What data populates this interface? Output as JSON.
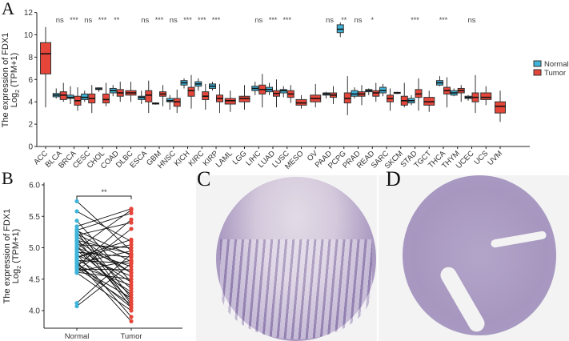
{
  "panels": {
    "a": "A",
    "b": "B",
    "c": "C",
    "d": "D"
  },
  "colors": {
    "normal": "#3fb4d8",
    "tumor": "#e6463a"
  },
  "chart_data": [
    {
      "type": "box",
      "panel": "A",
      "ylabel_line1": "The expression of FDX1",
      "ylabel_line2": "Log",
      "ylabel_sub": "2",
      "ylabel_line2b": " (TPM+1)",
      "ylim": [
        0,
        12
      ],
      "yticks": [
        0,
        2,
        4,
        6,
        8,
        10,
        12
      ],
      "legend": {
        "position": "right",
        "entries": [
          "Normal",
          "Tumor"
        ]
      },
      "categories": [
        "ACC",
        "BLCA",
        "BRCA",
        "CESC",
        "CHOL",
        "COAD",
        "DLBC",
        "ESCA",
        "GBM",
        "HNSC",
        "KICH",
        "KIRC",
        "KIRP",
        "LAML",
        "LGG",
        "LIHC",
        "LUAD",
        "LUSC",
        "MESO",
        "OV",
        "PAAD",
        "PCPG",
        "PRAD",
        "READ",
        "SARC",
        "SKCM",
        "STAD",
        "TGCT",
        "THCA",
        "THYM",
        "UCEC",
        "UCS",
        "UVM"
      ],
      "significance": [
        "",
        "ns",
        "***",
        "ns",
        "***",
        "**",
        "",
        "ns",
        "***",
        "ns",
        "***",
        "***",
        "***",
        "",
        "",
        "ns",
        "***",
        "***",
        "",
        "",
        "ns",
        "**",
        "ns",
        "*",
        "",
        "",
        "***",
        "",
        "***",
        "",
        "ns",
        "",
        ""
      ],
      "normal": [
        null,
        [
          4.3,
          4.45,
          4.6,
          4.75,
          5.2
        ],
        [
          3.8,
          4.3,
          4.4,
          4.6,
          5.4
        ],
        [
          4.0,
          4.2,
          4.4,
          4.7,
          5.0
        ],
        [
          4.9,
          5.1,
          5.15,
          5.25,
          5.3
        ],
        [
          4.5,
          4.8,
          5.0,
          5.2,
          5.5
        ],
        null,
        [
          3.8,
          4.2,
          4.4,
          4.5,
          5.0
        ],
        [
          3.75,
          3.8,
          3.85,
          3.9,
          3.95
        ],
        [
          3.3,
          4.0,
          4.1,
          4.3,
          4.6
        ],
        [
          5.2,
          5.5,
          5.7,
          5.9,
          6.1
        ],
        [
          5.0,
          5.4,
          5.6,
          5.8,
          6.1
        ],
        [
          5.0,
          5.2,
          5.4,
          5.6,
          5.8
        ],
        null,
        null,
        [
          4.6,
          5.0,
          5.2,
          5.4,
          5.8
        ],
        [
          4.6,
          4.9,
          5.1,
          5.3,
          5.7
        ],
        [
          4.4,
          4.8,
          5.0,
          5.1,
          5.4
        ],
        null,
        null,
        [
          4.3,
          4.6,
          4.7,
          4.8,
          4.9
        ],
        [
          9.8,
          10.2,
          10.5,
          10.9,
          11.1
        ],
        [
          4.3,
          4.5,
          4.7,
          5.0,
          5.3
        ],
        [
          4.6,
          4.9,
          5.0,
          5.1,
          5.2
        ],
        [
          4.5,
          4.8,
          5.0,
          5.3,
          5.6
        ],
        [
          4.7,
          4.75,
          4.8,
          4.85,
          4.9
        ],
        [
          3.7,
          3.9,
          4.1,
          4.3,
          4.6
        ],
        null,
        [
          5.4,
          5.5,
          5.7,
          5.9,
          6.3
        ],
        [
          4.5,
          4.6,
          4.8,
          5.0,
          5.2
        ],
        [
          4.1,
          4.3,
          4.4,
          4.5,
          4.6
        ],
        null,
        null
      ],
      "tumor": [
        [
          3.5,
          6.5,
          8.3,
          9.3,
          10.7
        ],
        [
          4.0,
          4.2,
          4.6,
          4.9,
          5.7
        ],
        [
          3.2,
          3.7,
          4.1,
          4.5,
          5.3
        ],
        [
          3.0,
          3.9,
          4.3,
          4.7,
          5.5
        ],
        [
          3.6,
          3.9,
          4.2,
          4.7,
          5.7
        ],
        [
          4.0,
          4.5,
          4.8,
          5.1,
          5.8
        ],
        [
          4.0,
          4.6,
          4.8,
          5.0,
          5.8
        ],
        [
          3.0,
          4.0,
          4.6,
          5.0,
          5.9
        ],
        [
          3.6,
          4.5,
          4.7,
          4.9,
          5.5
        ],
        [
          3.0,
          3.6,
          4.0,
          4.3,
          5.1
        ],
        [
          3.4,
          4.5,
          5.0,
          5.3,
          6.4
        ],
        [
          3.3,
          4.2,
          4.5,
          4.9,
          5.6
        ],
        [
          3.0,
          4.0,
          4.3,
          4.6,
          5.6
        ],
        [
          3.1,
          3.8,
          4.1,
          4.3,
          5.0
        ],
        [
          3.3,
          4.0,
          4.3,
          4.5,
          5.5
        ],
        [
          3.5,
          4.7,
          5.1,
          5.5,
          6.5
        ],
        [
          3.5,
          4.5,
          4.75,
          5.0,
          6.0
        ],
        [
          3.9,
          4.4,
          4.7,
          5.0,
          5.5
        ],
        [
          3.4,
          3.7,
          3.9,
          4.2,
          4.6
        ],
        [
          3.5,
          4.0,
          4.3,
          4.6,
          5.6
        ],
        [
          3.8,
          4.4,
          4.6,
          4.8,
          5.4
        ],
        [
          2.8,
          3.9,
          4.3,
          4.8,
          6.3
        ],
        [
          3.7,
          4.5,
          4.7,
          4.9,
          5.5
        ],
        [
          4.0,
          4.5,
          4.8,
          5.0,
          5.7
        ],
        [
          3.2,
          4.0,
          4.3,
          4.6,
          5.2
        ],
        [
          3.5,
          3.7,
          4.1,
          4.5,
          5.7
        ],
        [
          3.2,
          4.4,
          4.7,
          5.1,
          6.1
        ],
        [
          3.1,
          3.7,
          4.0,
          4.4,
          5.0
        ],
        [
          3.5,
          4.7,
          5.0,
          5.3,
          6.2
        ],
        [
          4.0,
          4.8,
          5.0,
          5.2,
          5.5
        ],
        [
          3.0,
          4.0,
          4.4,
          4.8,
          6.4
        ],
        [
          3.7,
          4.2,
          4.4,
          4.8,
          5.4
        ],
        [
          2.2,
          3.0,
          3.6,
          4.0,
          5.0
        ]
      ]
    },
    {
      "type": "paired-scatter",
      "panel": "B",
      "ylabel_line1": "The expression of FDX1",
      "ylabel_line2": "Log",
      "ylabel_sub": "2",
      "ylabel_line2b": " (TPM+1)",
      "ylim": [
        3.8,
        6.0
      ],
      "yticks": [
        "4.0",
        "4.5",
        "5.0",
        "5.5",
        "6.0"
      ],
      "categories": [
        "Normal",
        "Tumor"
      ],
      "significance": "**",
      "pairs": [
        [
          5.74,
          4.95
        ],
        [
          5.58,
          5.1
        ],
        [
          5.43,
          4.45
        ],
        [
          5.34,
          5.62
        ],
        [
          5.3,
          4.2
        ],
        [
          5.28,
          5.55
        ],
        [
          5.25,
          4.1
        ],
        [
          5.22,
          4.78
        ],
        [
          5.2,
          5.4
        ],
        [
          5.18,
          4.6
        ],
        [
          5.15,
          4.05
        ],
        [
          5.12,
          4.9
        ],
        [
          5.08,
          4.35
        ],
        [
          5.05,
          5.0
        ],
        [
          5.02,
          4.15
        ],
        [
          5.0,
          4.7
        ],
        [
          4.98,
          5.6
        ],
        [
          4.96,
          4.25
        ],
        [
          4.93,
          4.85
        ],
        [
          4.9,
          3.9
        ],
        [
          4.88,
          4.55
        ],
        [
          4.85,
          5.05
        ],
        [
          4.82,
          4.3
        ],
        [
          4.8,
          4.75
        ],
        [
          4.78,
          3.83
        ],
        [
          4.75,
          4.95
        ],
        [
          4.72,
          4.4
        ],
        [
          4.7,
          5.45
        ],
        [
          4.68,
          4.1
        ],
        [
          4.66,
          4.65
        ],
        [
          4.63,
          5.3
        ],
        [
          4.61,
          4.5
        ],
        [
          4.6,
          4.0
        ],
        [
          4.62,
          4.8
        ],
        [
          4.12,
          4.9
        ],
        [
          4.07,
          4.75
        ],
        [
          4.7,
          4.2
        ],
        [
          5.0,
          4.45
        ],
        [
          5.27,
          4.88
        ],
        [
          4.85,
          5.13
        ],
        [
          5.1,
          4.6
        ],
        [
          4.75,
          4.05
        ]
      ]
    }
  ]
}
